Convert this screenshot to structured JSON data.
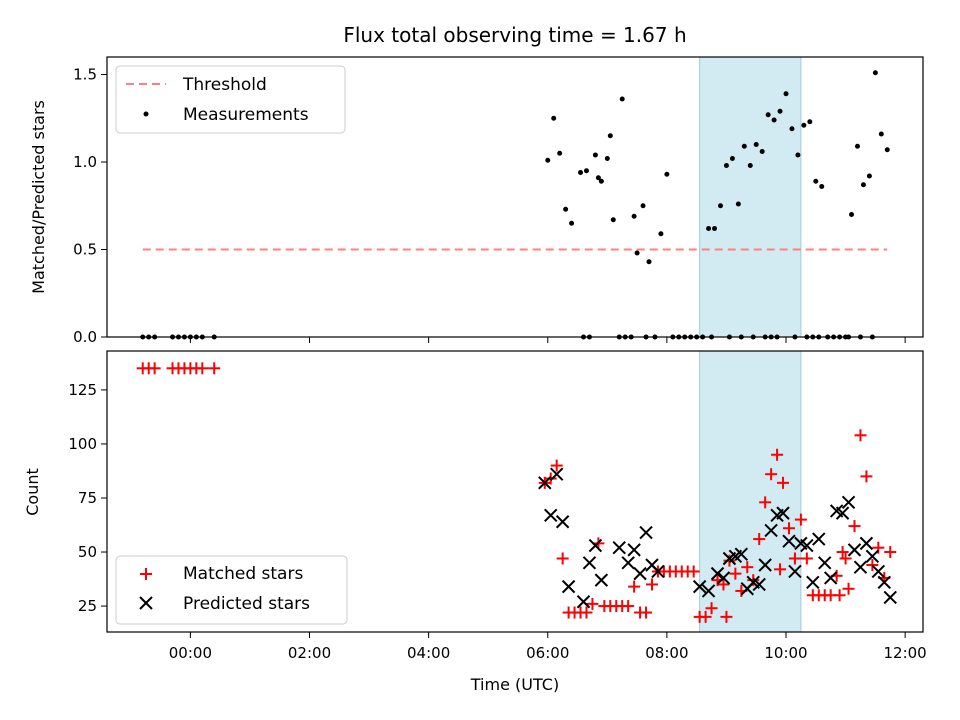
{
  "chart_data": [
    {
      "type": "scatter",
      "title": "Flux total observing time = 1.67 h",
      "xlabel": "",
      "ylabel": "Matched/Predicted stars",
      "xlim": [
        "22:36",
        "12:18"
      ],
      "ylim": [
        0,
        1.6
      ],
      "yticks": [
        0.0,
        0.5,
        1.0,
        1.5
      ],
      "ytick_labels": [
        "0.0",
        "0.5",
        "1.0",
        "1.5"
      ],
      "grid": false,
      "legend_position": "upper left",
      "highlight_span": {
        "start": "08:33",
        "end": "10:15",
        "color": "#add8e6"
      },
      "series": [
        {
          "name": "Threshold",
          "kind": "line",
          "style": "dashed",
          "color": "#ff8080",
          "x": [
            "23:12",
            "11:42"
          ],
          "y": [
            0.5,
            0.5
          ]
        },
        {
          "name": "Measurements",
          "kind": "scatter",
          "marker": "dot",
          "color": "#000000",
          "x": [
            "23:12",
            "23:18",
            "23:24",
            "23:42",
            "23:48",
            "23:54",
            "24:00",
            "24:06",
            "24:12",
            "24:24",
            "06:00",
            "06:06",
            "06:12",
            "06:18",
            "06:24",
            "06:36",
            "06:42",
            "06:48",
            "06:54",
            "07:00",
            "07:06",
            "07:12",
            "07:18",
            "07:24",
            "07:30",
            "07:36",
            "07:42",
            "07:48",
            "07:54",
            "08:00",
            "08:06",
            "08:12",
            "08:18",
            "08:24",
            "08:30",
            "08:36",
            "08:42",
            "08:48",
            "08:54",
            "09:00",
            "09:06",
            "09:12",
            "09:18",
            "09:24",
            "09:30",
            "09:36",
            "09:42",
            "09:48",
            "09:54",
            "10:00",
            "10:06",
            "10:12",
            "10:18",
            "10:24",
            "10:30",
            "10:36",
            "10:42",
            "10:48",
            "10:54",
            "11:00",
            "11:06",
            "11:12",
            "11:18",
            "11:24",
            "11:30",
            "11:36",
            "11:42",
            "06:33",
            "06:39",
            "06:51",
            "07:03",
            "07:15",
            "07:27",
            "07:39",
            "08:45",
            "09:51",
            "09:03",
            "09:15",
            "09:27",
            "09:39",
            "09:45",
            "10:09",
            "10:21",
            "10:27",
            "10:33",
            "11:03",
            "11:15",
            "11:27"
          ],
          "y": [
            0,
            0,
            0,
            0,
            0,
            0,
            0,
            0,
            0,
            0,
            1.01,
            1.25,
            1.05,
            0.73,
            0.65,
            0,
            0,
            1.04,
            0.89,
            1.02,
            0.67,
            0,
            0,
            0,
            0.48,
            0.75,
            0.43,
            0,
            0.59,
            0.93,
            0,
            0,
            0,
            0,
            0,
            0,
            0.62,
            0.62,
            0.75,
            0.98,
            1.02,
            0.76,
            1.09,
            0.98,
            1.1,
            1.06,
            1.27,
            1.24,
            1.29,
            1.39,
            1.19,
            1.04,
            1.21,
            1.23,
            0.89,
            0.86,
            0,
            0,
            0,
            0,
            0.7,
            1.09,
            0.87,
            0.92,
            1.51,
            1.16,
            1.07,
            0.94,
            0.95,
            0.91,
            1.15,
            1.36,
            0.69,
            0,
            0,
            0,
            0,
            0,
            0,
            0,
            0,
            0,
            0,
            0,
            0,
            0,
            0,
            0
          ]
        }
      ]
    },
    {
      "type": "scatter",
      "title": "",
      "xlabel": "Time (UTC)",
      "ylabel": "Count",
      "xlim": [
        "22:36",
        "12:18"
      ],
      "ylim": [
        13,
        143
      ],
      "yticks": [
        25,
        50,
        75,
        100,
        125
      ],
      "xticks": [
        "00:00",
        "02:00",
        "04:00",
        "06:00",
        "08:00",
        "10:00",
        "12:00"
      ],
      "grid": false,
      "legend_position": "lower left",
      "highlight_span": {
        "start": "08:33",
        "end": "10:15",
        "color": "#add8e6"
      },
      "series": [
        {
          "name": "Matched stars",
          "kind": "scatter",
          "marker": "plus",
          "color": "#ff0000",
          "x": [
            "23:12",
            "23:18",
            "23:24",
            "23:42",
            "23:48",
            "23:54",
            "24:00",
            "24:06",
            "24:12",
            "24:24",
            "05:57",
            "06:03",
            "06:09",
            "06:15",
            "06:21",
            "06:27",
            "06:33",
            "06:39",
            "06:45",
            "06:51",
            "06:57",
            "07:03",
            "07:09",
            "07:15",
            "07:21",
            "07:27",
            "07:33",
            "07:39",
            "07:45",
            "07:51",
            "07:57",
            "08:03",
            "08:09",
            "08:15",
            "08:21",
            "08:27",
            "08:33",
            "08:39",
            "08:45",
            "08:51",
            "08:57",
            "09:03",
            "09:09",
            "09:15",
            "09:21",
            "09:27",
            "09:33",
            "09:39",
            "09:45",
            "09:51",
            "09:57",
            "10:03",
            "10:09",
            "10:15",
            "10:21",
            "10:27",
            "10:33",
            "10:39",
            "10:45",
            "10:51",
            "10:57",
            "11:03",
            "11:09",
            "11:15",
            "11:21",
            "11:27",
            "11:33",
            "11:39",
            "11:45",
            "09:00",
            "09:54",
            "10:54",
            "11:00"
          ],
          "y": [
            135,
            135,
            135,
            135,
            135,
            135,
            135,
            135,
            135,
            135,
            82,
            84,
            90,
            47,
            22,
            22,
            22,
            22,
            26,
            54,
            25,
            25,
            25,
            25,
            25,
            34,
            22,
            22,
            35,
            41,
            41,
            41,
            41,
            41,
            41,
            41,
            20,
            20,
            24,
            37,
            35,
            46,
            40,
            32,
            43,
            37,
            56,
            73,
            86,
            95,
            82,
            61,
            47,
            65,
            47,
            30,
            30,
            30,
            30,
            39,
            50,
            33,
            62,
            104,
            85,
            44,
            52,
            38,
            50,
            20,
            42,
            30,
            47
          ]
        },
        {
          "name": "Predicted stars",
          "kind": "scatter",
          "marker": "x",
          "color": "#000000",
          "x": [
            "05:57",
            "06:03",
            "06:09",
            "06:15",
            "06:21",
            "06:36",
            "06:42",
            "06:48",
            "06:54",
            "07:12",
            "07:21",
            "07:27",
            "07:33",
            "07:39",
            "07:45",
            "07:51",
            "08:33",
            "08:42",
            "08:51",
            "08:57",
            "09:03",
            "09:09",
            "09:15",
            "09:21",
            "09:27",
            "09:33",
            "09:39",
            "09:45",
            "09:51",
            "09:57",
            "10:03",
            "10:09",
            "10:15",
            "10:21",
            "10:27",
            "10:33",
            "10:39",
            "10:45",
            "10:51",
            "10:57",
            "11:03",
            "11:09",
            "11:15",
            "11:21",
            "11:27",
            "11:33",
            "11:39",
            "11:45"
          ],
          "y": [
            82,
            67,
            86,
            64,
            34,
            27,
            45,
            53,
            37,
            52,
            45,
            51,
            40,
            59,
            44,
            41,
            34,
            32,
            40,
            38,
            47,
            48,
            49,
            33,
            36,
            35,
            44,
            60,
            67,
            68,
            55,
            41,
            54,
            53,
            36,
            56,
            45,
            38,
            69,
            68,
            73,
            51,
            43,
            54,
            48,
            41,
            36,
            29
          ]
        }
      ]
    }
  ]
}
